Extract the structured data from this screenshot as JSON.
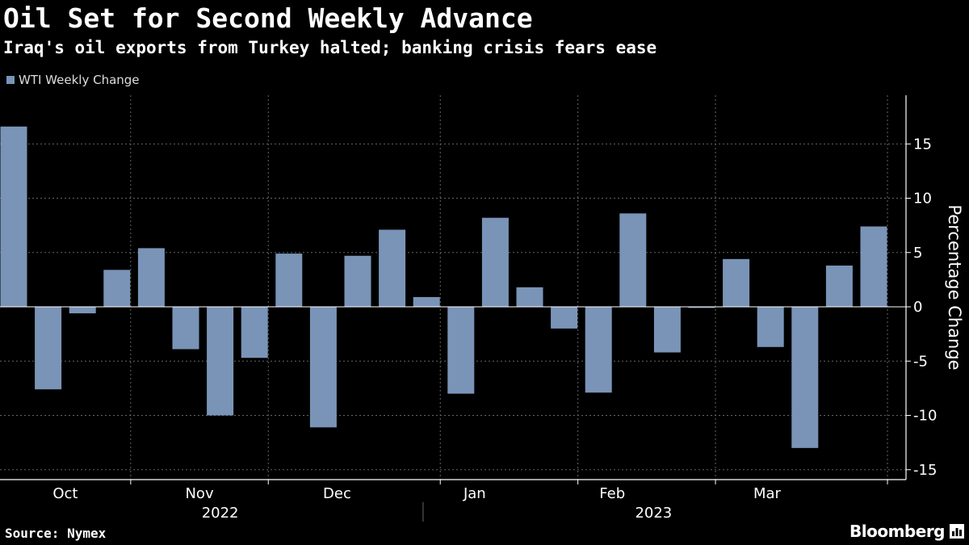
{
  "title": "Oil Set for Second Weekly Advance",
  "subtitle": "Iraq's oil exports from Turkey halted; banking crisis fears ease",
  "source": "Source: Nymex",
  "brand": "Bloomberg",
  "colors": {
    "bar": "#7a94b8",
    "background": "#000000",
    "grid": "#666666",
    "axis": "#ffffff"
  },
  "chart_data": {
    "type": "bar",
    "legend": [
      "WTI Weekly Change"
    ],
    "ylabel": "Percentage Change",
    "ylim": [
      -15.5,
      19
    ],
    "yticks": [
      15,
      10,
      5,
      0,
      -5,
      -10,
      -15
    ],
    "series": [
      {
        "name": "WTI Weekly Change",
        "values": [
          16.6,
          -7.6,
          -0.6,
          3.4,
          5.4,
          -3.9,
          -10,
          -4.7,
          4.9,
          -11.1,
          4.7,
          7.1,
          0.9,
          -8,
          8.2,
          1.8,
          -2,
          -7.9,
          8.6,
          -4.2,
          -0.1,
          4.4,
          -3.7,
          -13,
          3.8,
          7.4
        ]
      }
    ],
    "month_labels": [
      {
        "label": "Oct",
        "center": 1.5
      },
      {
        "label": "Nov",
        "center": 5.4
      },
      {
        "label": "Dec",
        "center": 9.4
      },
      {
        "label": "Jan",
        "center": 13.4
      },
      {
        "label": "Feb",
        "center": 17.4
      },
      {
        "label": "Mar",
        "center": 21.9
      }
    ],
    "month_boundaries": [
      3.4,
      7.4,
      12.4,
      16.4,
      20.4,
      25.4
    ],
    "year_labels": [
      {
        "label": "2022",
        "center": 6
      },
      {
        "label": "2023",
        "center": 18.6
      }
    ],
    "year_boundary": 11.9
  }
}
